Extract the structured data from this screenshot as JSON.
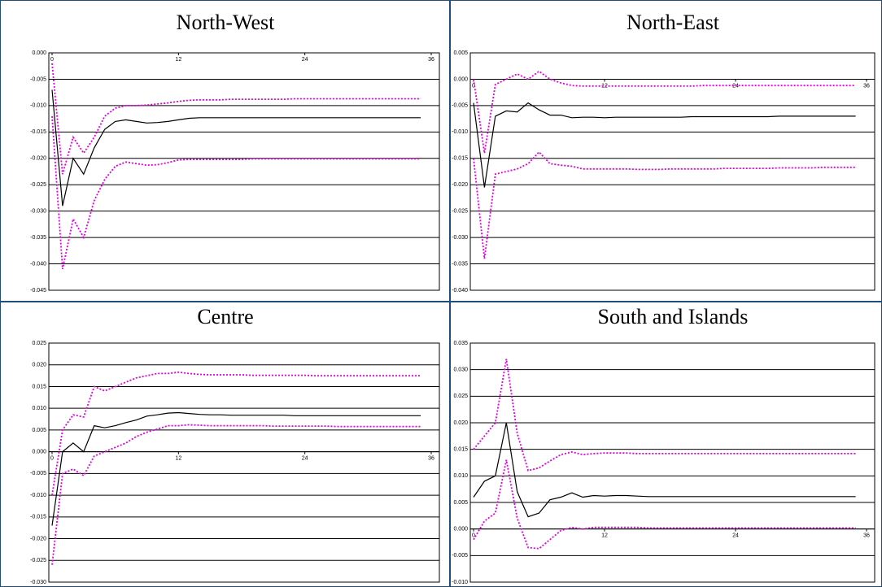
{
  "chart_data": [
    {
      "type": "line",
      "title": "North-West",
      "x": [
        0,
        1,
        2,
        3,
        4,
        5,
        6,
        7,
        8,
        9,
        10,
        11,
        12,
        13,
        14,
        15,
        16,
        17,
        18,
        19,
        20,
        21,
        22,
        23,
        24,
        25,
        26,
        27,
        28,
        29,
        30,
        31,
        32,
        33,
        34,
        35
      ],
      "xlim": [
        0,
        36
      ],
      "xticks": [
        0,
        12,
        24,
        36
      ],
      "ylim": [
        -0.045,
        0
      ],
      "yticks": [
        {
          "value": -0.045,
          "label": "-0.045"
        },
        {
          "value": -0.04,
          "label": "-0.040"
        },
        {
          "value": -0.035,
          "label": "-0.035"
        },
        {
          "value": -0.03,
          "label": "-0.030"
        },
        {
          "value": -0.025,
          "label": "-0.025"
        },
        {
          "value": -0.02,
          "label": "-0.020"
        },
        {
          "value": -0.015,
          "label": "-0.015"
        },
        {
          "value": -0.01,
          "label": "-0.010"
        },
        {
          "value": -0.005,
          "label": "-0.005"
        },
        {
          "value": 0,
          "label": "0.000"
        }
      ],
      "grid": true,
      "series": [
        {
          "color": "#000000",
          "line_style": "solid",
          "values": [
            -0.007,
            -0.029,
            -0.02,
            -0.023,
            -0.018,
            -0.0145,
            -0.013,
            -0.0127,
            -0.013,
            -0.0133,
            -0.0132,
            -0.013,
            -0.0127,
            -0.0124,
            -0.0123,
            -0.0123,
            -0.0123,
            -0.0123,
            -0.0123,
            -0.0123,
            -0.0123,
            -0.0123,
            -0.0123,
            -0.0123,
            -0.0123,
            -0.0123,
            -0.0123,
            -0.0123,
            -0.0123,
            -0.0123,
            -0.0123,
            -0.0123,
            -0.0123,
            -0.0123,
            -0.0123,
            -0.0123
          ]
        },
        {
          "color": "#e000e0",
          "line_style": "dotted",
          "values": [
            -0.002,
            -0.023,
            -0.016,
            -0.019,
            -0.016,
            -0.012,
            -0.0105,
            -0.01,
            -0.01,
            -0.0099,
            -0.0097,
            -0.0095,
            -0.0092,
            -0.009,
            -0.0089,
            -0.0089,
            -0.0089,
            -0.0088,
            -0.0088,
            -0.0088,
            -0.0088,
            -0.0088,
            -0.0088,
            -0.0087,
            -0.0087,
            -0.0087,
            -0.0087,
            -0.0087,
            -0.0087,
            -0.0087,
            -0.0087,
            -0.0087,
            -0.0087,
            -0.0087,
            -0.0087,
            -0.0087
          ]
        },
        {
          "color": "#e000e0",
          "line_style": "dotted",
          "values": [
            -0.012,
            -0.041,
            -0.0315,
            -0.035,
            -0.028,
            -0.024,
            -0.0215,
            -0.0207,
            -0.021,
            -0.0213,
            -0.0212,
            -0.0208,
            -0.0203,
            -0.0202,
            -0.0202,
            -0.0202,
            -0.0202,
            -0.0202,
            -0.0202,
            -0.0201,
            -0.0201,
            -0.0201,
            -0.0201,
            -0.0201,
            -0.0201,
            -0.0201,
            -0.0201,
            -0.0201,
            -0.0201,
            -0.0201,
            -0.0201,
            -0.0201,
            -0.0201,
            -0.0201,
            -0.0201,
            -0.0201
          ]
        }
      ]
    },
    {
      "type": "line",
      "title": "North-East",
      "x": [
        0,
        1,
        2,
        3,
        4,
        5,
        6,
        7,
        8,
        9,
        10,
        11,
        12,
        13,
        14,
        15,
        16,
        17,
        18,
        19,
        20,
        21,
        22,
        23,
        24,
        25,
        26,
        27,
        28,
        29,
        30,
        31,
        32,
        33,
        34,
        35
      ],
      "xlim": [
        0,
        36
      ],
      "xticks": [
        0,
        12,
        24,
        36
      ],
      "ylim": [
        -0.04,
        0.005
      ],
      "yticks": [
        {
          "value": -0.04,
          "label": "-0.040"
        },
        {
          "value": -0.035,
          "label": "-0.035"
        },
        {
          "value": -0.03,
          "label": "-0.030"
        },
        {
          "value": -0.025,
          "label": "-0.025"
        },
        {
          "value": -0.02,
          "label": "-0.020"
        },
        {
          "value": -0.015,
          "label": "-0.015"
        },
        {
          "value": -0.01,
          "label": "-0.010"
        },
        {
          "value": -0.005,
          "label": "-0.005"
        },
        {
          "value": 0,
          "label": "0.000"
        },
        0.005
      ],
      "grid": true,
      "series": [
        {
          "color": "#000000",
          "line_style": "solid",
          "values": [
            -0.0045,
            -0.0205,
            -0.007,
            -0.006,
            -0.0062,
            -0.0045,
            -0.0058,
            -0.0068,
            -0.0068,
            -0.0073,
            -0.0072,
            -0.0072,
            -0.0073,
            -0.0072,
            -0.0072,
            -0.0072,
            -0.0072,
            -0.0072,
            -0.0072,
            -0.0072,
            -0.0071,
            -0.0071,
            -0.0071,
            -0.0071,
            -0.0071,
            -0.0071,
            -0.0071,
            -0.0071,
            -0.007,
            -0.007,
            -0.007,
            -0.007,
            -0.007,
            -0.007,
            -0.007,
            -0.007
          ]
        },
        {
          "color": "#e000e0",
          "line_style": "dotted",
          "values": [
            0,
            -0.014,
            -0.001,
            0,
            0.001,
            0,
            0.0015,
            0,
            -0.0007,
            -0.0012,
            -0.0013,
            -0.0013,
            -0.0013,
            -0.0013,
            -0.0013,
            -0.0013,
            -0.0013,
            -0.0013,
            -0.0013,
            -0.0013,
            -0.0013,
            -0.0012,
            -0.0012,
            -0.0012,
            -0.0012,
            -0.0012,
            -0.0012,
            -0.0012,
            -0.0012,
            -0.0012,
            -0.0012,
            -0.0012,
            -0.0012,
            -0.0012,
            -0.0012,
            -0.0012
          ]
        },
        {
          "color": "#e000e0",
          "line_style": "dotted",
          "values": [
            -0.015,
            -0.034,
            -0.018,
            -0.0175,
            -0.017,
            -0.016,
            -0.0138,
            -0.016,
            -0.0163,
            -0.0165,
            -0.017,
            -0.017,
            -0.017,
            -0.017,
            -0.017,
            -0.0171,
            -0.0171,
            -0.0171,
            -0.017,
            -0.017,
            -0.017,
            -0.017,
            -0.017,
            -0.0169,
            -0.0169,
            -0.0169,
            -0.0169,
            -0.0169,
            -0.0168,
            -0.0168,
            -0.0168,
            -0.0168,
            -0.0167,
            -0.0167,
            -0.0167,
            -0.0167
          ]
        }
      ]
    },
    {
      "type": "line",
      "title": "Centre",
      "x": [
        0,
        1,
        2,
        3,
        4,
        5,
        6,
        7,
        8,
        9,
        10,
        11,
        12,
        13,
        14,
        15,
        16,
        17,
        18,
        19,
        20,
        21,
        22,
        23,
        24,
        25,
        26,
        27,
        28,
        29,
        30,
        31,
        32,
        33,
        34,
        35
      ],
      "xlim": [
        0,
        36
      ],
      "xticks": [
        0,
        12,
        24,
        36
      ],
      "ylim": [
        -0.03,
        0.025
      ],
      "yticks": [
        {
          "value": -0.03,
          "label": "-0.030"
        },
        {
          "value": -0.025,
          "label": "-0.025"
        },
        {
          "value": -0.02,
          "label": "-0.020"
        },
        {
          "value": -0.015,
          "label": "-0.015"
        },
        {
          "value": -0.01,
          "label": "-0.010"
        },
        {
          "value": -0.005,
          "label": "-0.005"
        },
        {
          "value": 0,
          "label": "0.000"
        },
        0.005,
        {
          "value": 0.01,
          "label": "0.010"
        },
        0.015,
        {
          "value": 0.02,
          "label": "0.020"
        },
        0.025
      ],
      "grid": true,
      "series": [
        {
          "color": "#000000",
          "line_style": "solid",
          "values": [
            -0.017,
            0,
            0.002,
            0,
            0.006,
            0.0055,
            0.006,
            0.0067,
            0.0073,
            0.0082,
            0.0085,
            0.0089,
            0.009,
            0.0088,
            0.0086,
            0.0085,
            0.0085,
            0.0084,
            0.0084,
            0.0084,
            0.0084,
            0.0084,
            0.0084,
            0.0083,
            0.0083,
            0.0083,
            0.0083,
            0.0083,
            0.0083,
            0.0083,
            0.0083,
            0.0083,
            0.0083,
            0.0083,
            0.0083,
            0.0083
          ]
        },
        {
          "color": "#e000e0",
          "line_style": "dotted",
          "values": [
            -0.01,
            0.005,
            0.0085,
            0.008,
            0.015,
            0.014,
            0.015,
            0.016,
            0.017,
            0.0175,
            0.018,
            0.018,
            0.0183,
            0.018,
            0.0178,
            0.0177,
            0.0177,
            0.0177,
            0.0177,
            0.0176,
            0.0176,
            0.0176,
            0.0176,
            0.0176,
            0.0176,
            0.0175,
            0.0175,
            0.0175,
            0.0175,
            0.0175,
            0.0175,
            0.0175,
            0.0175,
            0.0175,
            0.0175,
            0.0175
          ]
        },
        {
          "color": "#e000e0",
          "line_style": "dotted",
          "values": [
            -0.026,
            -0.005,
            -0.004,
            -0.0055,
            -0.001,
            0,
            0.001,
            0.002,
            0.0035,
            0.0045,
            0.0052,
            0.006,
            0.006,
            0.0062,
            0.0061,
            0.006,
            0.006,
            0.006,
            0.006,
            0.006,
            0.006,
            0.0059,
            0.0059,
            0.0059,
            0.0059,
            0.0059,
            0.0059,
            0.0058,
            0.0058,
            0.0058,
            0.0058,
            0.0058,
            0.0058,
            0.0058,
            0.0058,
            0.0058
          ]
        }
      ]
    },
    {
      "type": "line",
      "title": "South and Islands",
      "x": [
        0,
        1,
        2,
        3,
        4,
        5,
        6,
        7,
        8,
        9,
        10,
        11,
        12,
        13,
        14,
        15,
        16,
        17,
        18,
        19,
        20,
        21,
        22,
        23,
        24,
        25,
        26,
        27,
        28,
        29,
        30,
        31,
        32,
        33,
        34,
        35
      ],
      "xlim": [
        0,
        36
      ],
      "xticks": [
        0,
        12,
        24,
        36
      ],
      "ylim": [
        -0.01,
        0.035
      ],
      "yticks": [
        {
          "value": -0.01,
          "label": "-0.010"
        },
        {
          "value": -0.005,
          "label": "-0.005"
        },
        {
          "value": 0,
          "label": "0.000"
        },
        0.005,
        {
          "value": 0.01,
          "label": "0.010"
        },
        0.015,
        {
          "value": 0.02,
          "label": "0.020"
        },
        0.025,
        {
          "value": 0.03,
          "label": "0.030"
        },
        0.035
      ],
      "grid": true,
      "series": [
        {
          "color": "#000000",
          "line_style": "solid",
          "values": [
            0.006,
            0.009,
            0.01,
            0.02,
            0.007,
            0.0023,
            0.003,
            0.0055,
            0.006,
            0.0068,
            0.006,
            0.0063,
            0.0062,
            0.0063,
            0.0063,
            0.0062,
            0.0061,
            0.0061,
            0.0061,
            0.0061,
            0.0061,
            0.0061,
            0.0061,
            0.0061,
            0.0061,
            0.0061,
            0.0061,
            0.0061,
            0.0061,
            0.0061,
            0.0061,
            0.0061,
            0.0061,
            0.0061,
            0.0061,
            0.0061
          ]
        },
        {
          "color": "#e000e0",
          "line_style": "dotted",
          "values": [
            0.015,
            0.0175,
            0.02,
            0.032,
            0.018,
            0.011,
            0.0115,
            0.0128,
            0.014,
            0.0145,
            0.014,
            0.0142,
            0.0143,
            0.0143,
            0.0143,
            0.0142,
            0.0142,
            0.0142,
            0.0142,
            0.0142,
            0.0142,
            0.0142,
            0.0142,
            0.0142,
            0.0142,
            0.0142,
            0.0142,
            0.0142,
            0.0142,
            0.0142,
            0.0142,
            0.0142,
            0.0142,
            0.0142,
            0.0142,
            0.0142
          ]
        },
        {
          "color": "#e000e0",
          "line_style": "dotted",
          "values": [
            -0.002,
            0.0015,
            0.003,
            0.013,
            0.002,
            -0.0035,
            -0.0037,
            -0.002,
            -0.0003,
            0.0003,
            0,
            0.0003,
            0.0003,
            0.0003,
            0.0003,
            0.0003,
            0.0002,
            0.0002,
            0.0002,
            0.0002,
            0.0002,
            0.0002,
            0.0002,
            0.0002,
            0.0002,
            0.0002,
            0.0002,
            0.0002,
            0.0002,
            0.0002,
            0.0002,
            0.0002,
            0.0002,
            0.0002,
            0.0002,
            0.0002
          ]
        }
      ]
    }
  ]
}
